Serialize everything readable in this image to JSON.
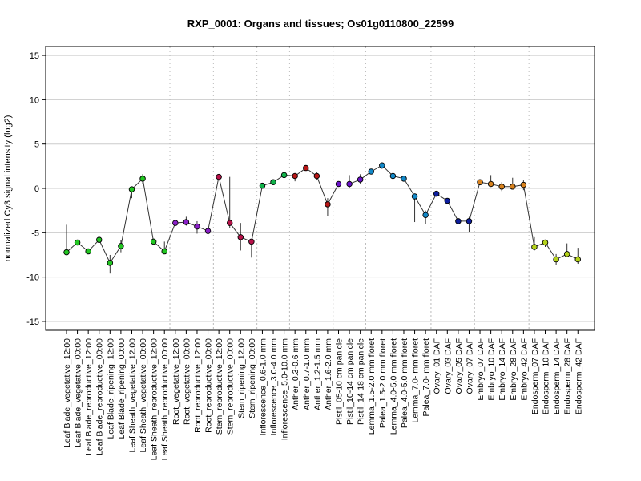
{
  "chart_data": {
    "type": "line",
    "title": "RXP_0001: Organs and tissues; Os01g0110800_22599",
    "ylabel": "normalized Cy3 signal intensity (log2)",
    "xlabel": "",
    "ylim": [
      -16,
      16
    ],
    "yticks": [
      -15,
      -10,
      -5,
      0,
      5,
      10,
      15
    ],
    "grid": true,
    "categories": [
      "Leaf Blade_vegetative_12:00",
      "Leaf Blade_vegetative_00:00",
      "Leaf Blade_reproductive_12:00",
      "Leaf Blade_reproductive_00:00",
      "Leaf Blade_ripening_12:00",
      "Leaf Blade_ripening_00:00",
      "Leaf Sheath_vegetative_12:00",
      "Leaf Sheath_vegetative_00:00",
      "Leaf Sheath_reproductive_12:00",
      "Leaf Sheath_reproductive_00:00",
      "Root_vegetative_12:00",
      "Root_vegetative_00:00",
      "Root_reproductive_12:00",
      "Root_reproductive_00:00",
      "Stem_reproductive_12:00",
      "Stem_reproductive_00:00",
      "Stem_ripening_12:00",
      "Stem_ripening_00:00",
      "Inflorescence_0.6-1.0 mm",
      "Inflorescence_3.0-4.0 mm",
      "Inflorescence_5.0-10.0 mm",
      "Anther_0.3-0.6 mm",
      "Anther_0.7-1.0 mm",
      "Anther_1.2-1.5 mm",
      "Anther_1.6-2.0 mm",
      "Pistil_05-10 cm panicle",
      "Pistil_10-14 cm panicle",
      "Pistil_14-18 cm panicle",
      "Lemma_1.5-2.0 mm floret",
      "Palea_1.5-2.0 mm floret",
      "Lemma_4.0-5.0 mm floret",
      "Palea_4.0-5.0 mm floret",
      "Lemma_7.0- mm floret",
      "Palea_7.0- mm floret",
      "Ovary_01 DAF",
      "Ovary_03 DAF",
      "Ovary_05 DAF",
      "Ovary_07 DAF",
      "Embryo_07 DAF",
      "Embryo_10 DAF",
      "Embryo_14 DAF",
      "Embryo_28 DAF",
      "Embryo_42 DAF",
      "Endosperm_07 DAF",
      "Endosperm_10 DAF",
      "Endosperm_14 DAF",
      "Endosperm_28 DAF",
      "Endosperm_42 DAF"
    ],
    "values": [
      -7.2,
      -6.1,
      -7.1,
      -5.8,
      -8.4,
      -6.5,
      -0.1,
      1.1,
      -6.0,
      -7.1,
      -3.9,
      -3.8,
      -4.3,
      -4.8,
      1.3,
      -3.9,
      -5.5,
      -6.0,
      0.3,
      0.7,
      1.5,
      1.4,
      2.3,
      1.4,
      -1.8,
      0.5,
      0.5,
      1.0,
      1.9,
      2.6,
      1.4,
      1.1,
      -0.9,
      -3.0,
      -0.6,
      -1.4,
      -3.7,
      -3.7,
      0.7,
      0.5,
      0.2,
      0.2,
      0.4,
      -6.6,
      -6.1,
      -8.0,
      -7.4,
      -8.0
    ],
    "errors": [
      [
        -4.1,
        -7.4
      ],
      null,
      null,
      null,
      [
        -7.5,
        -9.6
      ],
      [
        -5.8,
        -7.2
      ],
      [
        -1.1,
        0.0
      ],
      [
        0.5,
        1.6
      ],
      null,
      [
        -6.0,
        -7.2
      ],
      null,
      [
        -3.2,
        -4.2
      ],
      [
        -3.7,
        -5.1
      ],
      [
        -3.7,
        -5.5
      ],
      [
        1.3,
        1.0
      ],
      [
        1.3,
        -4.5
      ],
      [
        -3.9,
        -7.0
      ],
      [
        -6.0,
        -7.8
      ],
      null,
      null,
      null,
      [
        1.4,
        0.8
      ],
      null,
      [
        1.8,
        0.9
      ],
      [
        -1.1,
        -3.1
      ],
      null,
      [
        1.5,
        0.0
      ],
      [
        1.6,
        0.5
      ],
      null,
      [
        2.9,
        2.2
      ],
      null,
      null,
      [
        -0.9,
        -3.8
      ],
      [
        -2.5,
        -4.0
      ],
      null,
      null,
      null,
      [
        -3.2,
        -4.9
      ],
      null,
      [
        1.5,
        0.3
      ],
      [
        0.7,
        -0.3
      ],
      [
        1.2,
        0.0
      ],
      [
        0.9,
        -0.2
      ],
      [
        -5.5,
        -7.0
      ],
      [
        -6.0,
        -6.6
      ],
      [
        -7.4,
        -8.6
      ],
      [
        -6.2,
        -7.6
      ],
      [
        -6.7,
        -8.5
      ]
    ],
    "colors": [
      "#22c722",
      "#22c722",
      "#22c722",
      "#22c722",
      "#22c722",
      "#22c722",
      "#22c722",
      "#22c722",
      "#22c722",
      "#22c722",
      "#8a1fc8",
      "#8a1fc8",
      "#8a1fc8",
      "#8a1fc8",
      "#b8124a",
      "#b8124a",
      "#b8124a",
      "#b8124a",
      "#11b24a",
      "#11b24a",
      "#11b24a",
      "#b81616",
      "#b81616",
      "#b81616",
      "#b81616",
      "#6a11c8",
      "#6a11c8",
      "#6a11c8",
      "#1288c8",
      "#1288c8",
      "#1288c8",
      "#1288c8",
      "#1288c8",
      "#1288c8",
      "#0d1e9e",
      "#0d1e9e",
      "#0d1e9e",
      "#0d1e9e",
      "#d8821e",
      "#d8821e",
      "#d8821e",
      "#d8821e",
      "#d8821e",
      "#b4d21a",
      "#b4d21a",
      "#b4d21a",
      "#b4d21a",
      "#b4d21a"
    ],
    "group_separators_after": [
      9,
      13,
      17,
      20,
      24,
      27,
      33,
      37,
      42
    ]
  }
}
